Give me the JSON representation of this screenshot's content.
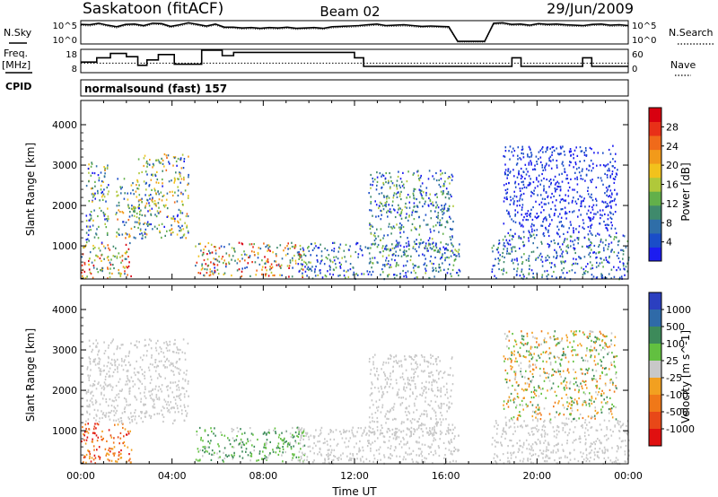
{
  "header": {
    "station": "Saskatoon (fitACF)",
    "beam": "Beam 02",
    "date": "29/Jun/2009"
  },
  "summary": {
    "left_labels": {
      "nsky": "N.Sky",
      "freq": "Freq.",
      "freq_unit": "[MHz]",
      "cpid": "CPID"
    },
    "right_labels": {
      "nsearch": "N.Search",
      "nave": "Nave"
    },
    "nsky_ticks": [
      "10^5",
      "10^0"
    ],
    "nsearch_ticks": [
      "10^5",
      "10^0"
    ],
    "freq_ticks": [
      "18",
      "8"
    ],
    "nave_ticks": [
      "60",
      "0"
    ],
    "cpid_text": "normalsound (fast) 157",
    "nsky_log": [
      4.5,
      4.4,
      4.8,
      4.3,
      3.9,
      4.5,
      4.6,
      4.2,
      4.8,
      4.7,
      4.0,
      4.4,
      4.9,
      4.5,
      4.1,
      4.6,
      3.8,
      3.8,
      3.6,
      3.7,
      3.5,
      3.7,
      3.6,
      3.8,
      3.5,
      3.6,
      3.7,
      3.5,
      3.9,
      4.0,
      4.1,
      4.2,
      4.4,
      4.6,
      4.2,
      4.3,
      4.4,
      4.2,
      4.0,
      4.1,
      4.0,
      3.9,
      0.2,
      0.2,
      0.2,
      0.2,
      4.8,
      4.9,
      4.5,
      4.6,
      4.3,
      4.7,
      4.5,
      4.6,
      4.4,
      4.3,
      4.2,
      4.5,
      4.6,
      4.3,
      4.4,
      4.2
    ],
    "freq_steps": [
      [
        0.0,
        12.5
      ],
      [
        0.7,
        14.5
      ],
      [
        1.3,
        16.5
      ],
      [
        2.0,
        15.0
      ],
      [
        2.5,
        11.0
      ],
      [
        2.9,
        13.5
      ],
      [
        3.4,
        16.0
      ],
      [
        4.1,
        11.5
      ],
      [
        4.7,
        11.5
      ],
      [
        5.3,
        18.0
      ],
      [
        6.2,
        15.5
      ],
      [
        6.7,
        17.0
      ],
      [
        9.3,
        17.0
      ],
      [
        12.0,
        14.5
      ],
      [
        12.4,
        10.5
      ],
      [
        16.7,
        10.5
      ],
      [
        18.0,
        10.5
      ],
      [
        18.9,
        14.5
      ],
      [
        19.3,
        10.5
      ],
      [
        22.0,
        14.5
      ],
      [
        22.4,
        10.5
      ],
      [
        24.0,
        10.5
      ]
    ],
    "freq_dotted_mhz": 12.0,
    "gap_hours": [
      [
        16.7,
        18.0
      ]
    ]
  },
  "chart_data": [
    {
      "type": "heatmap",
      "name": "Power",
      "xlabel": "",
      "ylabel": "Slant Range [km]",
      "xlim": [
        0,
        24
      ],
      "ylim": [
        180,
        4600
      ],
      "yticks": [
        1000,
        2000,
        3000,
        4000
      ],
      "colorbar": {
        "label": "Power [dB]",
        "ticks": [
          "4",
          "8",
          "12",
          "16",
          "20",
          "24",
          "28"
        ],
        "colors": [
          "#1c1cf0",
          "#1a4dc8",
          "#2f6ea8",
          "#3f8a6c",
          "#62b04a",
          "#b0c83a",
          "#f2c21c",
          "#f29a1a",
          "#f06a1a",
          "#e83018",
          "#d80010"
        ]
      },
      "scatter_regions": [
        {
          "x": [
            0.0,
            2.2
          ],
          "y": [
            200,
            1100
          ],
          "vmin": 8,
          "vmax": 28
        },
        {
          "x": [
            0.2,
            1.2
          ],
          "y": [
            1100,
            3100
          ],
          "vmin": 4,
          "vmax": 20
        },
        {
          "x": [
            1.5,
            2.6
          ],
          "y": [
            1200,
            2700
          ],
          "vmin": 6,
          "vmax": 22
        },
        {
          "x": [
            2.5,
            4.7
          ],
          "y": [
            1200,
            3300
          ],
          "vmin": 4,
          "vmax": 22
        },
        {
          "x": [
            5.0,
            9.8
          ],
          "y": [
            250,
            1100
          ],
          "vmin": 6,
          "vmax": 28
        },
        {
          "x": [
            9.5,
            16.6
          ],
          "y": [
            200,
            1100
          ],
          "vmin": 4,
          "vmax": 16
        },
        {
          "x": [
            12.6,
            16.3
          ],
          "y": [
            900,
            2900
          ],
          "vmin": 4,
          "vmax": 16
        },
        {
          "x": [
            18.0,
            24.0
          ],
          "y": [
            200,
            1300
          ],
          "vmin": 4,
          "vmax": 14
        },
        {
          "x": [
            18.5,
            23.5
          ],
          "y": [
            1300,
            3500
          ],
          "vmin": 4,
          "vmax": 8
        }
      ]
    },
    {
      "type": "heatmap",
      "name": "Velocity",
      "xlabel": "Time UT",
      "ylabel": "Slant Range [km]",
      "xlim": [
        0,
        24
      ],
      "ylim": [
        180,
        4600
      ],
      "yticks": [
        1000,
        2000,
        3000,
        4000
      ],
      "xticks": [
        "00:00",
        "04:00",
        "08:00",
        "12:00",
        "16:00",
        "20:00",
        "00:00"
      ],
      "colorbar": {
        "label": "Velocity [m s^-1]",
        "ticks": [
          "1000",
          "500",
          "100",
          "25",
          "-25",
          "-100",
          "-500",
          "-1000"
        ],
        "colors": [
          "#2b3fc0",
          "#2f6aa8",
          "#3d8a5a",
          "#62c040",
          "#c8c8c8",
          "#f2a020",
          "#f07818",
          "#e84818",
          "#e01010"
        ]
      },
      "scatter_regions": [
        {
          "x": [
            0.0,
            2.2
          ],
          "y": [
            200,
            1200
          ],
          "vmin": -1000,
          "vmax": -100
        },
        {
          "x": [
            0.2,
            4.7
          ],
          "y": [
            1200,
            3300
          ],
          "vmin": -25,
          "vmax": 25
        },
        {
          "x": [
            5.0,
            9.8
          ],
          "y": [
            250,
            1100
          ],
          "vmin": 25,
          "vmax": 500
        },
        {
          "x": [
            9.5,
            16.6
          ],
          "y": [
            200,
            1100
          ],
          "vmin": -100,
          "vmax": 100
        },
        {
          "x": [
            12.6,
            16.3
          ],
          "y": [
            900,
            2900
          ],
          "vmin": -25,
          "vmax": 25
        },
        {
          "x": [
            18.0,
            24.0
          ],
          "y": [
            200,
            1300
          ],
          "vmin": -100,
          "vmax": 100
        },
        {
          "x": [
            18.5,
            23.5
          ],
          "y": [
            1300,
            3500
          ],
          "vmin": -500,
          "vmax": 500
        }
      ]
    }
  ]
}
